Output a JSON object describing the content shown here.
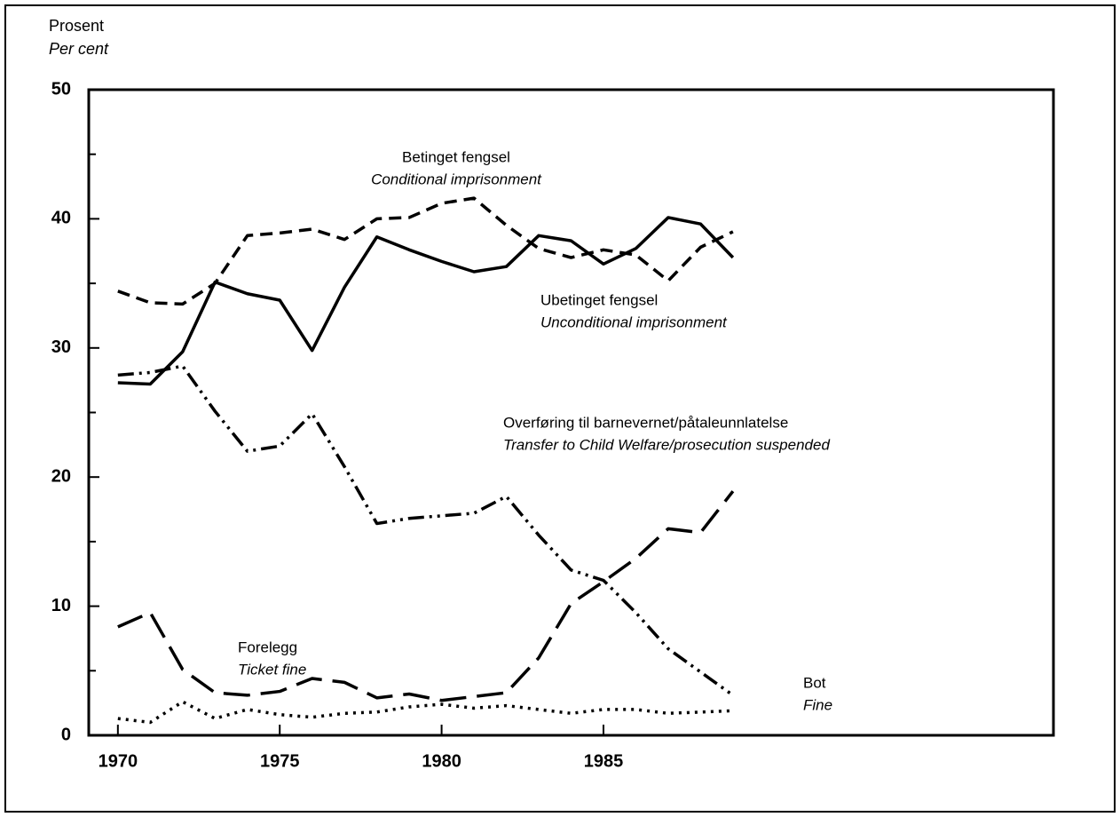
{
  "chart_data": {
    "type": "line",
    "y_label": "Prosent",
    "y_label_en": "Per cent",
    "x": [
      1970,
      1971,
      1972,
      1973,
      1974,
      1975,
      1976,
      1977,
      1978,
      1979,
      1980,
      1981,
      1982,
      1983,
      1984,
      1985,
      1986,
      1987,
      1988,
      1989
    ],
    "xlim": [
      1969.1,
      1998.9
    ],
    "xticks": [
      1970,
      1975,
      1980,
      1985
    ],
    "ylim": [
      0,
      50
    ],
    "yticks": [
      0,
      10,
      20,
      30,
      40,
      50
    ],
    "yminor": [
      5,
      15,
      25,
      35,
      45
    ],
    "series": [
      {
        "name": "Betinget fengsel",
        "name_en": "Conditional imprisonment",
        "color": "#000000",
        "dash": "dashed",
        "values": [
          34.4,
          33.5,
          33.4,
          35.0,
          38.7,
          38.9,
          39.2,
          38.4,
          40.0,
          40.1,
          41.2,
          41.6,
          39.5,
          37.7,
          37.0,
          37.6,
          37.2,
          35.2,
          37.8,
          39.0
        ]
      },
      {
        "name": "Ubetinget fengsel",
        "name_en": "Unconditional imprisonment",
        "color": "#000000",
        "dash": "solid",
        "values": [
          27.3,
          27.2,
          29.7,
          35.1,
          34.2,
          33.7,
          29.8,
          34.7,
          38.6,
          37.6,
          36.7,
          35.9,
          36.3,
          38.7,
          38.3,
          36.5,
          37.7,
          40.1,
          39.6,
          37.0
        ]
      },
      {
        "name": "Overføring til barnevernet/påtaleunnlatelse",
        "name_en": "Transfer to Child Welfare/prosecution suspended",
        "color": "#000000",
        "dash": "dashdot",
        "values": [
          27.9,
          28.1,
          28.6,
          25.1,
          22.0,
          22.4,
          24.9,
          20.8,
          16.4,
          16.8,
          17.0,
          17.2,
          18.5,
          15.5,
          12.8,
          12.0,
          9.5,
          6.7,
          4.9,
          3.1
        ]
      },
      {
        "name": "Forelegg",
        "name_en": "Ticket fine",
        "color": "#000000",
        "dash": "longdash",
        "values": [
          8.4,
          9.5,
          5.1,
          3.3,
          3.1,
          3.4,
          4.4,
          4.1,
          2.9,
          3.2,
          2.7,
          3.0,
          3.3,
          6.0,
          10.2,
          11.9,
          13.7,
          16.0,
          15.7,
          18.9
        ]
      },
      {
        "name": "Bot",
        "name_en": "Fine",
        "color": "#000000",
        "dash": "dotted",
        "values": [
          1.3,
          1.0,
          2.6,
          1.3,
          2.0,
          1.6,
          1.4,
          1.7,
          1.8,
          2.2,
          2.4,
          2.1,
          2.3,
          2.0,
          1.7,
          2.0,
          2.0,
          1.7,
          1.8,
          1.9
        ]
      }
    ]
  }
}
